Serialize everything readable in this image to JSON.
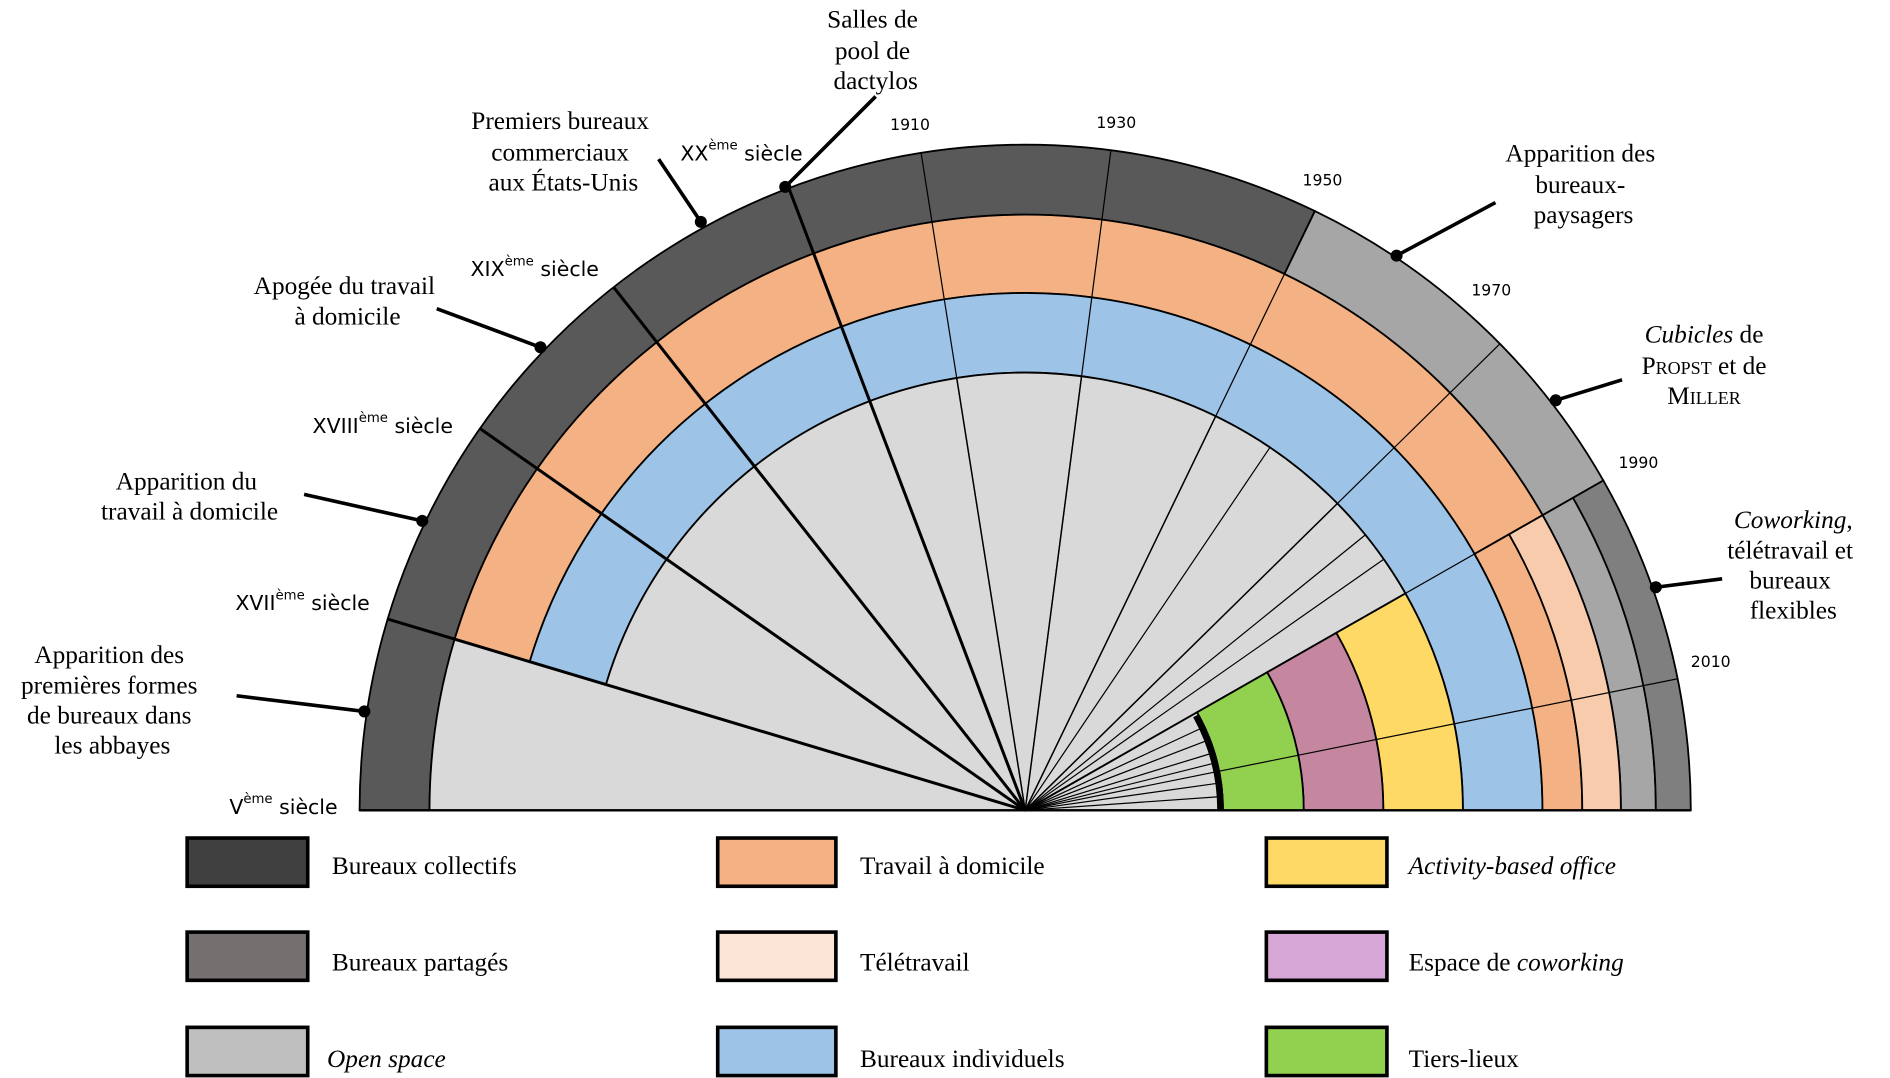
{
  "eras": [
    {
      "base": "V",
      "sup": "ème",
      "rest": " siècle"
    },
    {
      "base": "XVII",
      "sup": "ème",
      "rest": " siècle"
    },
    {
      "base": "XVIII",
      "sup": "ème",
      "rest": " siècle"
    },
    {
      "base": "XIX",
      "sup": "ème",
      "rest": " siècle"
    },
    {
      "base": "XX",
      "sup": "ème",
      "rest": " siècle"
    }
  ],
  "years": [
    "1910",
    "1930",
    "1950",
    "1970",
    "1990",
    "2010"
  ],
  "annotations": [
    {
      "lines": [
        "Apparition des",
        "premières formes",
        "de bureaux dans",
        "les abbayes"
      ]
    },
    {
      "lines": [
        "Apparition du",
        "travail à domicile"
      ]
    },
    {
      "lines": [
        "Apogée du travail",
        "à domicile"
      ]
    },
    {
      "lines": [
        "Premiers bureaux",
        "commerciaux",
        "aux États-Unis"
      ]
    },
    {
      "lines": [
        "Salles de",
        "pool de",
        "dactylos"
      ]
    },
    {
      "lines": [
        "Apparition des",
        "bureaux-",
        "paysagers"
      ]
    },
    {
      "cubicles": {
        "em": "Cubicles",
        "after": " de",
        "name1": "Propst",
        "mid": " et de",
        "name2": "Miller"
      }
    },
    {
      "coworking": {
        "em": "Coworking",
        "after": ",",
        "lines": [
          "télétravail et",
          "bureaux",
          "flexibles"
        ]
      }
    }
  ],
  "legend": [
    {
      "label": "Bureaux collectifs"
    },
    {
      "label": "Travail à domicile"
    },
    {
      "label_em": "Activity-based office"
    },
    {
      "label": "Bureaux partagés"
    },
    {
      "label": "Télétravail"
    },
    {
      "label": "Espace de ",
      "label_em": "coworking"
    },
    {
      "label_em": "Open space"
    },
    {
      "label": "Bureaux individuels"
    },
    {
      "label": "Tiers-lieux"
    }
  ]
}
